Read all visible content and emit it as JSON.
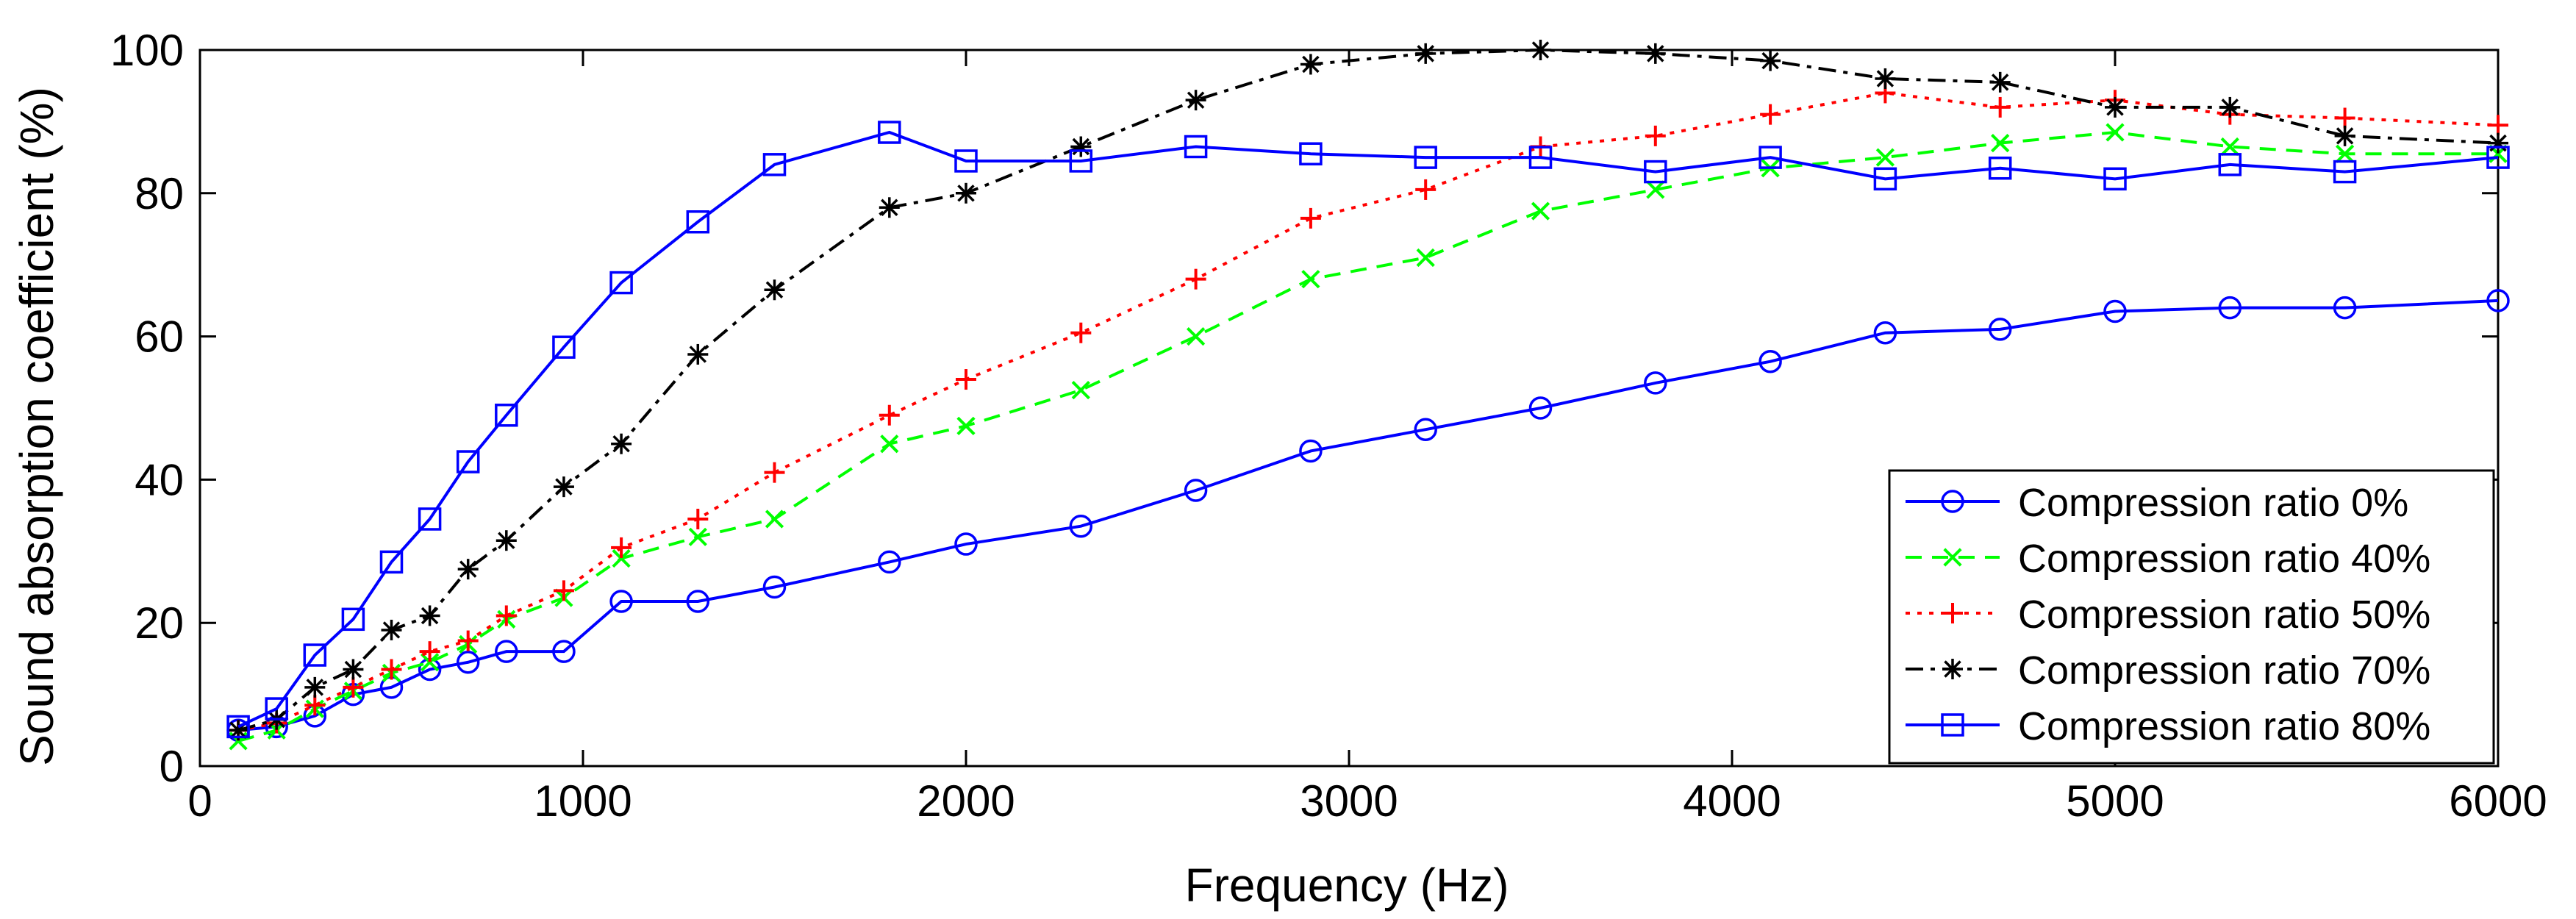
{
  "chart_data": {
    "type": "line",
    "xlabel": "Frequency (Hz)",
    "ylabel": "Sound absorption coefficient (%)",
    "xlim": [
      0,
      6000
    ],
    "ylim": [
      0,
      100
    ],
    "xticks": [
      0,
      1000,
      2000,
      3000,
      4000,
      5000,
      6000
    ],
    "yticks": [
      0,
      20,
      40,
      60,
      80,
      100
    ],
    "grid": false,
    "legend_position": "bottom-right",
    "x": [
      100,
      200,
      300,
      400,
      500,
      600,
      700,
      800,
      950,
      1100,
      1300,
      1500,
      1800,
      2000,
      2300,
      2600,
      2900,
      3200,
      3500,
      3800,
      4100,
      4400,
      4700,
      5000,
      5300,
      5600,
      6000
    ],
    "series": [
      {
        "name": "Compression ratio 0%",
        "color": "#0000ff",
        "marker": "circle",
        "dash": "solid",
        "values": [
          5,
          5.5,
          7,
          10,
          11,
          13.5,
          14.5,
          16,
          16,
          23,
          23,
          25,
          28.5,
          31,
          33.5,
          38.5,
          44,
          47,
          50,
          53.5,
          56.5,
          60.5,
          61,
          63.5,
          64,
          64,
          65
        ]
      },
      {
        "name": "Compression ratio 40%",
        "color": "#00ff00",
        "marker": "x",
        "dash": "dashed",
        "values": [
          3.5,
          5,
          8,
          10.5,
          13,
          14.5,
          17,
          20.5,
          23.5,
          29,
          32,
          34.5,
          45,
          47.5,
          52.5,
          60,
          68,
          71,
          77.5,
          80.5,
          83.5,
          85,
          87,
          88.5,
          86.5,
          85.5,
          85.5
        ]
      },
      {
        "name": "Compression ratio 50%",
        "color": "#ff0000",
        "marker": "plus",
        "dash": "dotted",
        "values": [
          5,
          6,
          8.5,
          11,
          13.5,
          16,
          17.5,
          21,
          24.5,
          30.5,
          34.5,
          41,
          49,
          54,
          60.5,
          68,
          76.5,
          80.5,
          86.5,
          88,
          91,
          94,
          92,
          93,
          91,
          90.5,
          89.5
        ]
      },
      {
        "name": "Compression ratio 70%",
        "color": "#000000",
        "marker": "star",
        "dash": "dashdot",
        "values": [
          5,
          6.5,
          11,
          13.5,
          19,
          21,
          27.5,
          31.5,
          39,
          45,
          57.5,
          66.5,
          78,
          80,
          86.5,
          93,
          98,
          99.5,
          100,
          99.5,
          98.5,
          96,
          95.5,
          92,
          92,
          88,
          87
        ]
      },
      {
        "name": "Compression ratio 80%",
        "color": "#0000ff",
        "marker": "square",
        "dash": "solid",
        "values": [
          5.5,
          8,
          15.5,
          20.5,
          28.5,
          34.5,
          42.5,
          49,
          58.5,
          67.5,
          76,
          84,
          88.5,
          84.5,
          84.5,
          86.5,
          85.5,
          85,
          85,
          83,
          85,
          82,
          83.5,
          82,
          84,
          83,
          85
        ]
      }
    ]
  }
}
